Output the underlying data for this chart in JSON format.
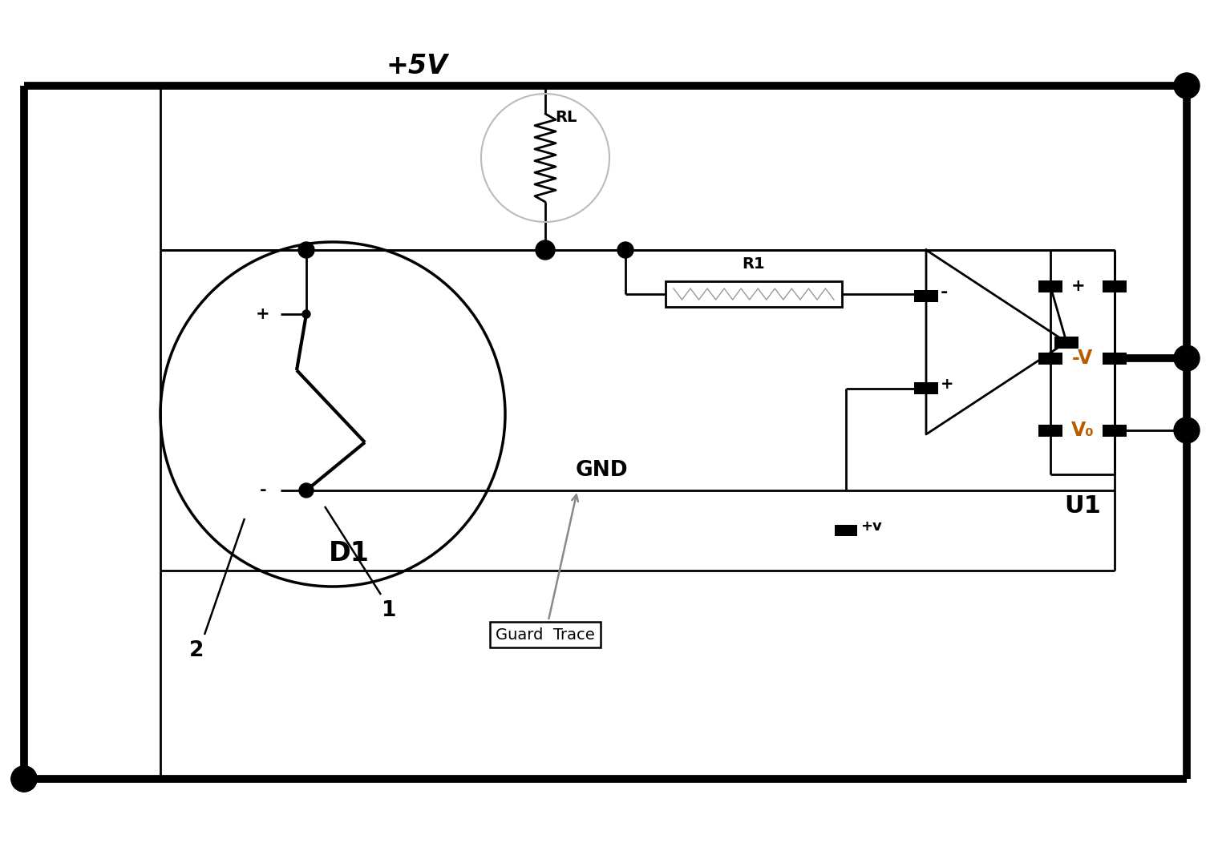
{
  "background_color": "#ffffff",
  "line_color": "#000000",
  "thick_lw": 7,
  "thin_lw": 2,
  "text_color_black": "#000000",
  "text_color_orange": "#b85c00",
  "plus5v_label": "+5V",
  "gnd_label": "GND",
  "d1_label": "D1",
  "u1_label": "U1",
  "r1_label": "R1",
  "rl_label": "RL",
  "label1": "1",
  "label2": "2",
  "guard_trace_label": "Guard  Trace",
  "minus_v_label": "-V",
  "vo_label": "V₀",
  "plusv_label": "+v",
  "plus_label": "+",
  "minus_label": "-"
}
